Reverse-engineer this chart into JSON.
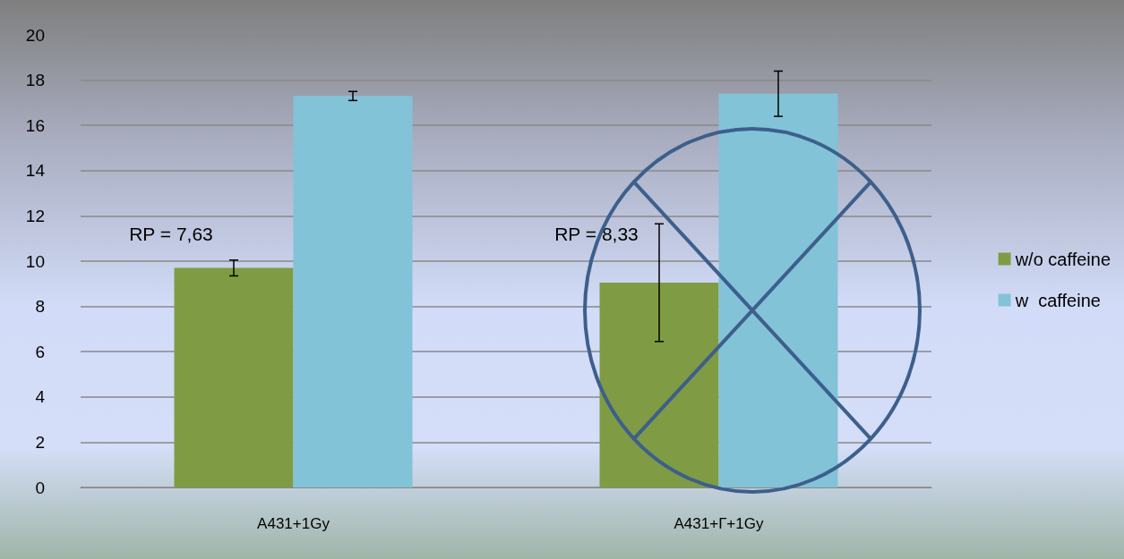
{
  "chart_data": {
    "type": "bar",
    "categories": [
      "A431+1Gy",
      "A431+Г+1Gy"
    ],
    "series": [
      {
        "name": "w/o caffeine",
        "color": "#7f9c44",
        "values": [
          9.7,
          9.05
        ],
        "errors": [
          0.35,
          2.6
        ]
      },
      {
        "name": "w  caffeine",
        "color": "#82c3d8",
        "values": [
          17.3,
          17.4
        ],
        "errors": [
          0.2,
          1.0
        ]
      }
    ],
    "ylim": [
      0,
      20
    ],
    "yticks": [
      0,
      2,
      4,
      6,
      8,
      10,
      12,
      14,
      16,
      18,
      20
    ],
    "grid": "y",
    "legend": "right",
    "annotations": [
      "RP = 7,63",
      "RP = 8,33"
    ]
  }
}
